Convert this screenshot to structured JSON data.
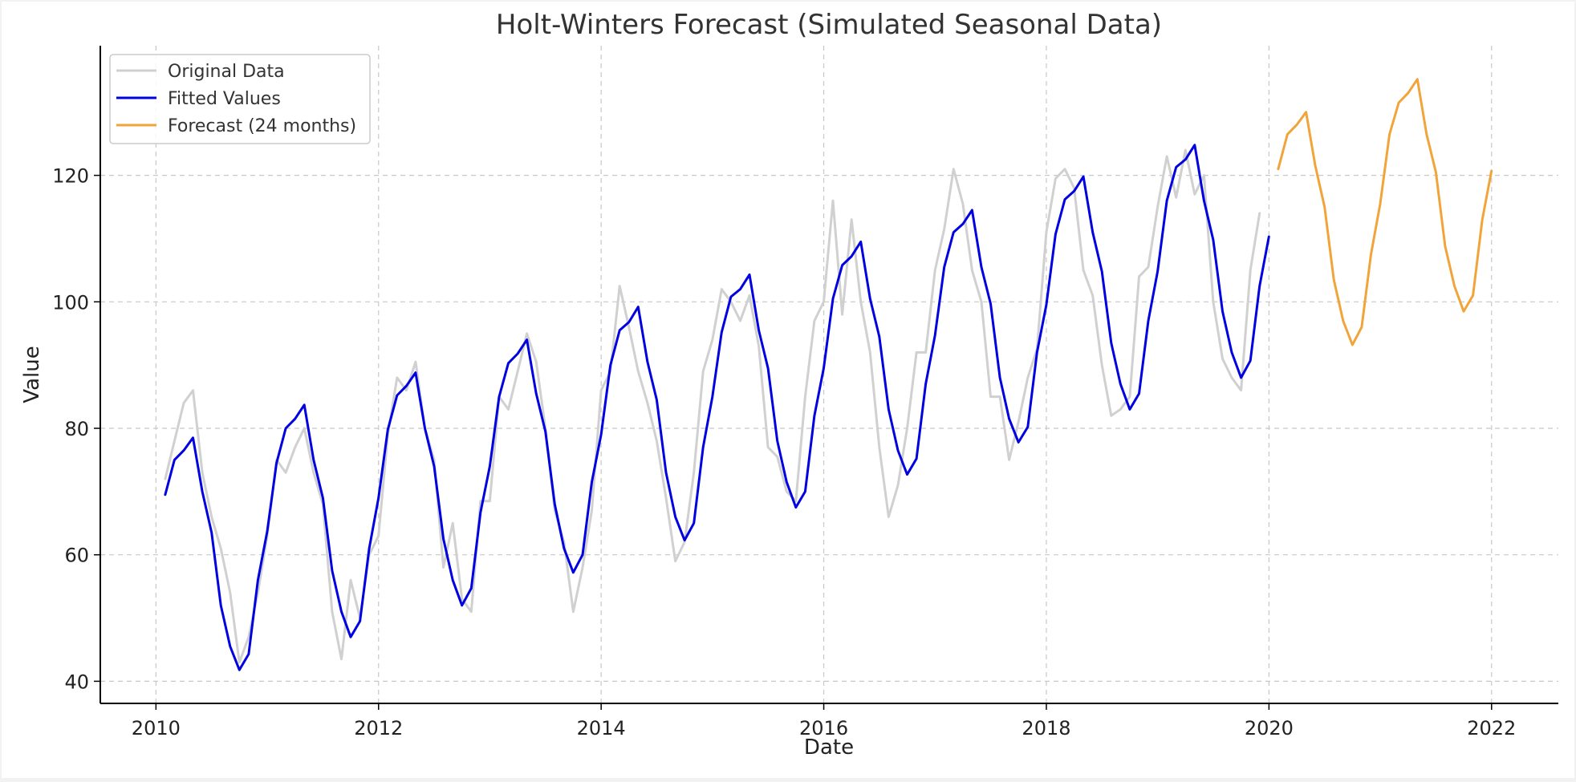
{
  "chart_data": {
    "type": "line",
    "title": "Holt-Winters Forecast (Simulated Seasonal Data)",
    "xlabel": "Date",
    "ylabel": "Value",
    "xlim": [
      2009.5,
      2022.6
    ],
    "ylim": [
      36.5,
      140.5
    ],
    "x_ticks": [
      2010,
      2012,
      2014,
      2016,
      2018,
      2020,
      2022
    ],
    "y_ticks": [
      40,
      60,
      80,
      100,
      120
    ],
    "grid": true,
    "legend_position": "top-left",
    "series": [
      {
        "name": "Original Data",
        "color": "#d0d0d0",
        "start": 2010.083,
        "step": 0.08333,
        "values": [
          72,
          78,
          84,
          86,
          73,
          66,
          61,
          54,
          43,
          47,
          54,
          63,
          75,
          73,
          77,
          80,
          73,
          68,
          51,
          43.5,
          56,
          50,
          60,
          63,
          79,
          88,
          86,
          90.5,
          80,
          75,
          58,
          65,
          53,
          51,
          68.5,
          68.5,
          85,
          83,
          89,
          95,
          90.5,
          80,
          67,
          62,
          51,
          58,
          67,
          86,
          89,
          102.5,
          96,
          89,
          84,
          78,
          69,
          59,
          62,
          73,
          89,
          94,
          102,
          100,
          97,
          101,
          93,
          77,
          75.5,
          70,
          68.5,
          85,
          97,
          100,
          116,
          98,
          113,
          100,
          92,
          77,
          66,
          71,
          80,
          92,
          92,
          105,
          111.5,
          121,
          115.5,
          105,
          100,
          85,
          85,
          75,
          81,
          88,
          92.5,
          111,
          119.5,
          121,
          118,
          105,
          101,
          90,
          82,
          83,
          85,
          104,
          105.5,
          115,
          123,
          116.5,
          124,
          117,
          120,
          100,
          91,
          88,
          86,
          105,
          114
        ]
      },
      {
        "name": "Fitted Values",
        "color": "#0000e0",
        "start": 2010.083,
        "step": 0.08333,
        "values": [
          69.5,
          75,
          76.5,
          78.5,
          70,
          63.5,
          52,
          45.5,
          41.8,
          44.3,
          56,
          63.7,
          74.5,
          80,
          81.5,
          83.7,
          75,
          69,
          57.5,
          51,
          47,
          49.5,
          61,
          69,
          79.8,
          85.2,
          86.7,
          88.8,
          80,
          74,
          62.5,
          56,
          52,
          54.7,
          66.7,
          74,
          85,
          90.3,
          91.8,
          94,
          85.5,
          79.5,
          68,
          61,
          57.2,
          60,
          71.5,
          79,
          90,
          95.5,
          96.8,
          99.2,
          90.5,
          84.5,
          73,
          66,
          62.3,
          65,
          77,
          85,
          95.2,
          100.8,
          102,
          104.3,
          95.5,
          89.5,
          78,
          71.5,
          67.5,
          70,
          82,
          89.5,
          100.5,
          105.8,
          107.2,
          109.5,
          100.5,
          94.5,
          83,
          76.5,
          72.7,
          75.2,
          87,
          94.7,
          105.5,
          111,
          112.3,
          114.5,
          105.5,
          99.7,
          88,
          81.5,
          77.8,
          80.2,
          92,
          99.5,
          110.7,
          116.2,
          117.5,
          119.8,
          111,
          104.8,
          93.5,
          87,
          83,
          85.5,
          97,
          104.8,
          116,
          121.3,
          122.5,
          124.8,
          116,
          109.8,
          98.5,
          92,
          88,
          90.7,
          102.5,
          110.3
        ]
      },
      {
        "name": "Forecast (24 months)",
        "color": "#f0a43a",
        "start": 2020.083,
        "step": 0.08333,
        "values": [
          121,
          126.5,
          128,
          130,
          121.5,
          115,
          103.5,
          97,
          93.2,
          96,
          107.5,
          115.5,
          126.5,
          131.5,
          133,
          135.2,
          126.5,
          120.5,
          108.8,
          102.5,
          98.5,
          101,
          113,
          120.7
        ]
      }
    ]
  }
}
